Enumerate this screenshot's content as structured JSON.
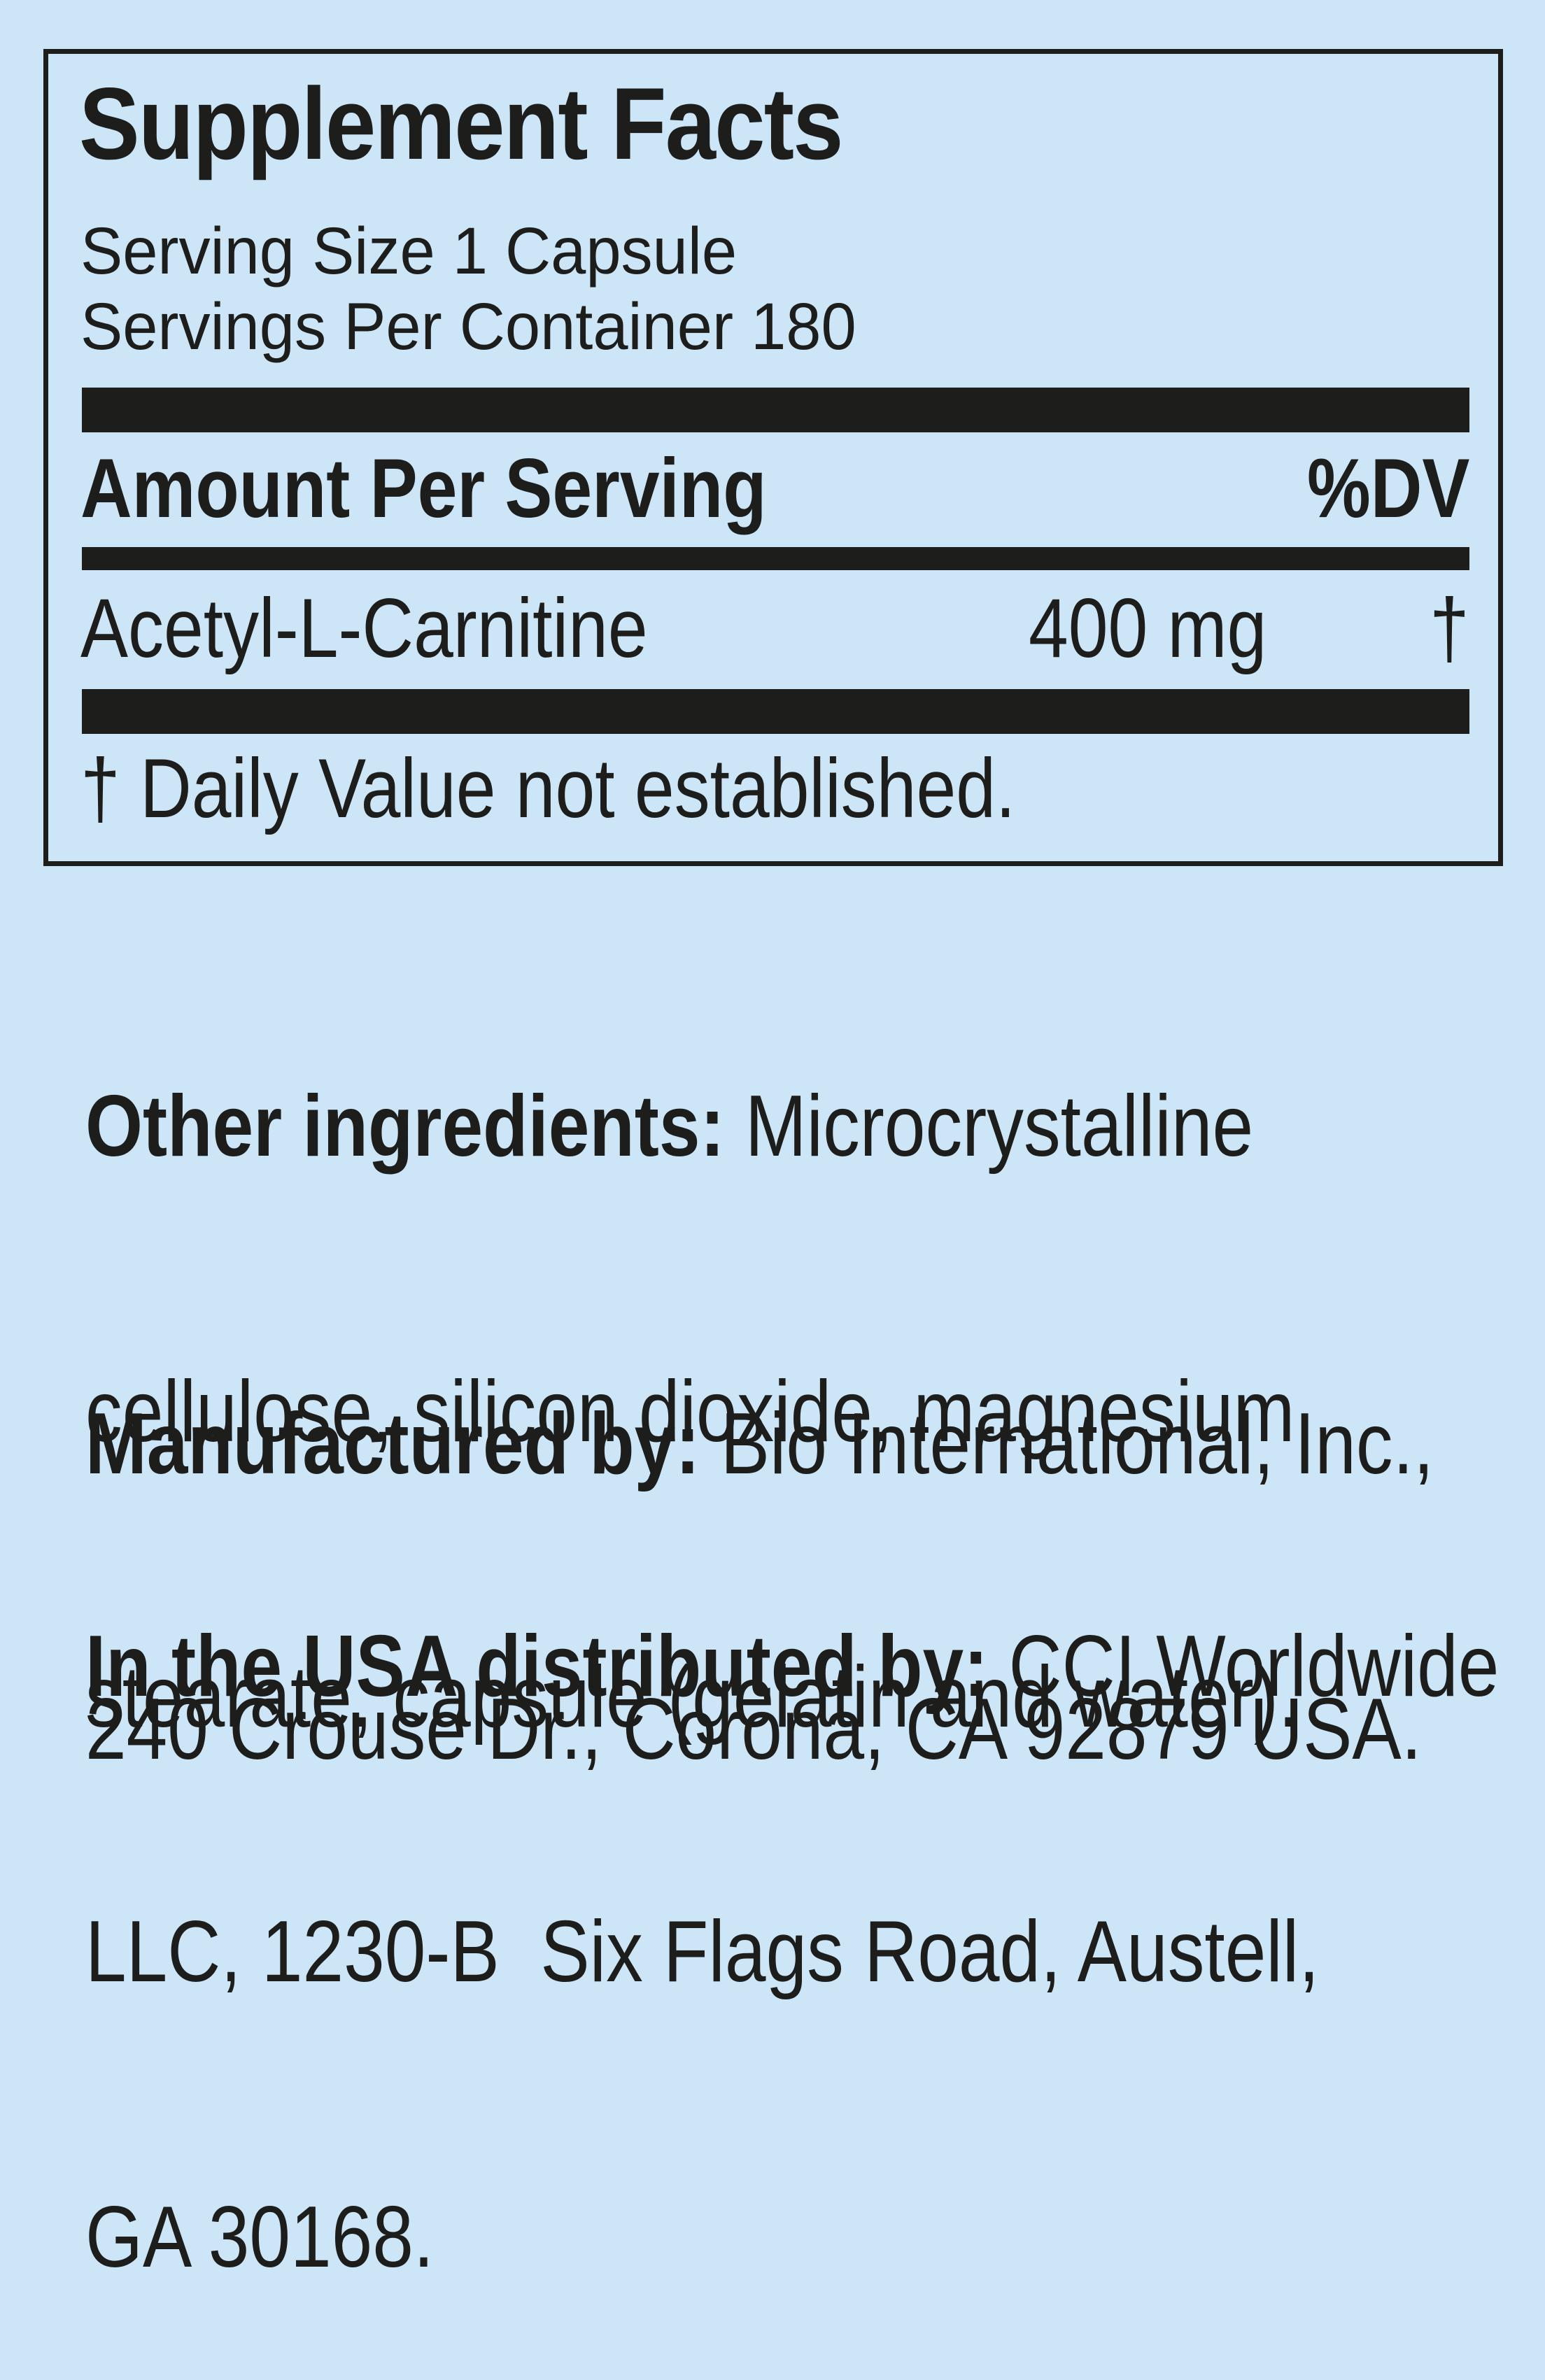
{
  "colors": {
    "background": "#cce5f7",
    "ink": "#1d1d1b"
  },
  "supplement_facts": {
    "title": "Supplement Facts",
    "serving_size": "Serving Size 1 Capsule",
    "servings_per_container": "Servings Per Container 180",
    "amount_per_serving_label": "Amount Per Serving",
    "daily_value_label": "%DV",
    "ingredients": [
      {
        "name": "Acetyl-L-Carnitine",
        "amount": "400 mg",
        "daily_value": "†"
      }
    ],
    "footnote": "† Daily Value not established."
  },
  "other_ingredients": {
    "label": "Other ingredients:",
    "lines": [
      " Microcrystalline",
      "cellulose, silicon dioxide, magnesium",
      "stearate, capsule (gelatin and water)."
    ]
  },
  "manufactured_by": {
    "label": "Manufactured by:",
    "lines": [
      " Bio International, Inc.,",
      "240 Crouse Dr., Corona, CA 92879 USA."
    ]
  },
  "distributed_by": {
    "label": "In the USA distributed by:",
    "lines": [
      " CCI Worldwide",
      "LLC, 1230-B  Six Flags Road, Austell,",
      "GA 30168."
    ]
  }
}
